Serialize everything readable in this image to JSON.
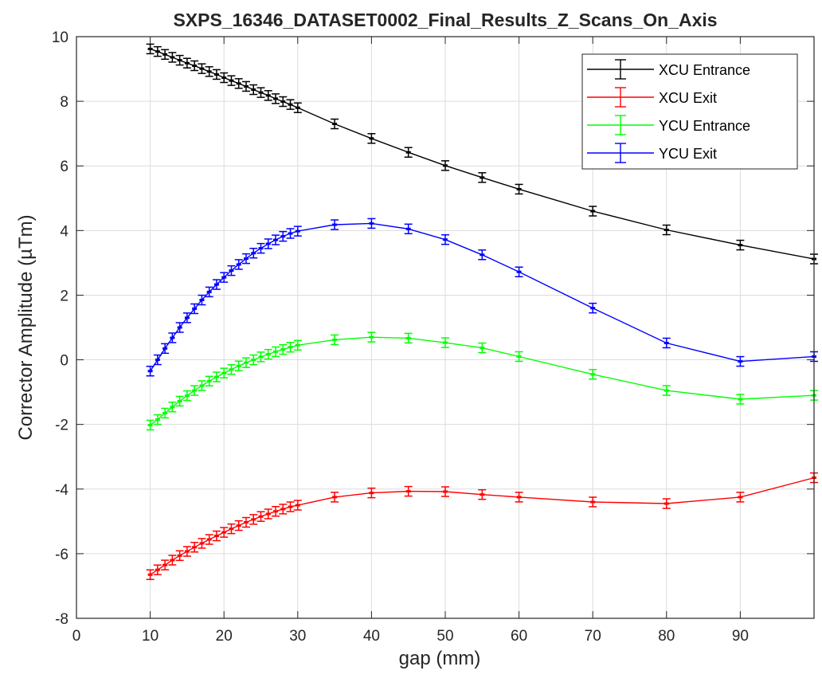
{
  "chart_data": {
    "type": "line",
    "title": "SXPS_16346_DATASET0002_Final_Results_Z_Scans_On_Axis",
    "xlabel": "gap (mm)",
    "ylabel": "Corrector Amplitude (µTm)",
    "xlim": [
      0,
      100
    ],
    "ylim": [
      -8,
      10
    ],
    "xticks": [
      0,
      10,
      20,
      30,
      40,
      50,
      60,
      70,
      80,
      90
    ],
    "yticks": [
      -8,
      -6,
      -4,
      -2,
      0,
      2,
      4,
      6,
      8,
      10
    ],
    "grid": true,
    "legend_position": "top-right",
    "series": [
      {
        "name": "XCU Entrance",
        "color": "#000000",
        "x": [
          10,
          11,
          12,
          13,
          14,
          15,
          16,
          17,
          18,
          19,
          20,
          21,
          22,
          23,
          24,
          25,
          26,
          27,
          28,
          29,
          30,
          35,
          40,
          45,
          50,
          55,
          60,
          70,
          80,
          90,
          100
        ],
        "y": [
          9.62,
          9.54,
          9.45,
          9.36,
          9.27,
          9.18,
          9.1,
          9.01,
          8.92,
          8.83,
          8.73,
          8.64,
          8.55,
          8.46,
          8.36,
          8.27,
          8.18,
          8.08,
          7.99,
          7.9,
          7.8,
          7.3,
          6.85,
          6.42,
          6.01,
          5.64,
          5.28,
          4.6,
          4.02,
          3.55,
          3.12
        ]
      },
      {
        "name": "XCU Exit",
        "color": "#ff0000",
        "x": [
          10,
          11,
          12,
          13,
          14,
          15,
          16,
          17,
          18,
          19,
          20,
          21,
          22,
          23,
          24,
          25,
          26,
          27,
          28,
          29,
          30,
          35,
          40,
          45,
          50,
          55,
          60,
          70,
          80,
          90,
          100
        ],
        "y": [
          -6.65,
          -6.5,
          -6.35,
          -6.2,
          -6.06,
          -5.93,
          -5.8,
          -5.68,
          -5.56,
          -5.45,
          -5.34,
          -5.23,
          -5.13,
          -5.03,
          -4.94,
          -4.85,
          -4.77,
          -4.69,
          -4.62,
          -4.55,
          -4.5,
          -4.25,
          -4.12,
          -4.07,
          -4.08,
          -4.17,
          -4.25,
          -4.4,
          -4.45,
          -4.25,
          -3.65
        ]
      },
      {
        "name": "YCU Entrance",
        "color": "#00ff00",
        "x": [
          10,
          11,
          12,
          13,
          14,
          15,
          16,
          17,
          18,
          19,
          20,
          21,
          22,
          23,
          24,
          25,
          26,
          27,
          28,
          29,
          30,
          35,
          40,
          45,
          50,
          55,
          60,
          70,
          80,
          90,
          100
        ],
        "y": [
          -2.02,
          -1.85,
          -1.65,
          -1.46,
          -1.28,
          -1.11,
          -0.95,
          -0.8,
          -0.66,
          -0.53,
          -0.41,
          -0.3,
          -0.19,
          -0.09,
          0.0,
          0.09,
          0.17,
          0.25,
          0.32,
          0.39,
          0.45,
          0.62,
          0.7,
          0.67,
          0.53,
          0.37,
          0.1,
          -0.45,
          -0.95,
          -1.22,
          -1.1
        ]
      },
      {
        "name": "YCU Exit",
        "color": "#0000ff",
        "x": [
          10,
          11,
          12,
          13,
          14,
          15,
          16,
          17,
          18,
          19,
          20,
          21,
          22,
          23,
          24,
          25,
          26,
          27,
          28,
          29,
          30,
          35,
          40,
          45,
          50,
          55,
          60,
          70,
          80,
          90,
          100
        ],
        "y": [
          -0.35,
          0.0,
          0.35,
          0.68,
          1.0,
          1.3,
          1.58,
          1.85,
          2.1,
          2.33,
          2.55,
          2.76,
          2.95,
          3.13,
          3.3,
          3.45,
          3.59,
          3.71,
          3.82,
          3.91,
          3.98,
          4.18,
          4.22,
          4.05,
          3.72,
          3.25,
          2.72,
          1.6,
          0.52,
          -0.05,
          0.1
        ]
      }
    ]
  }
}
